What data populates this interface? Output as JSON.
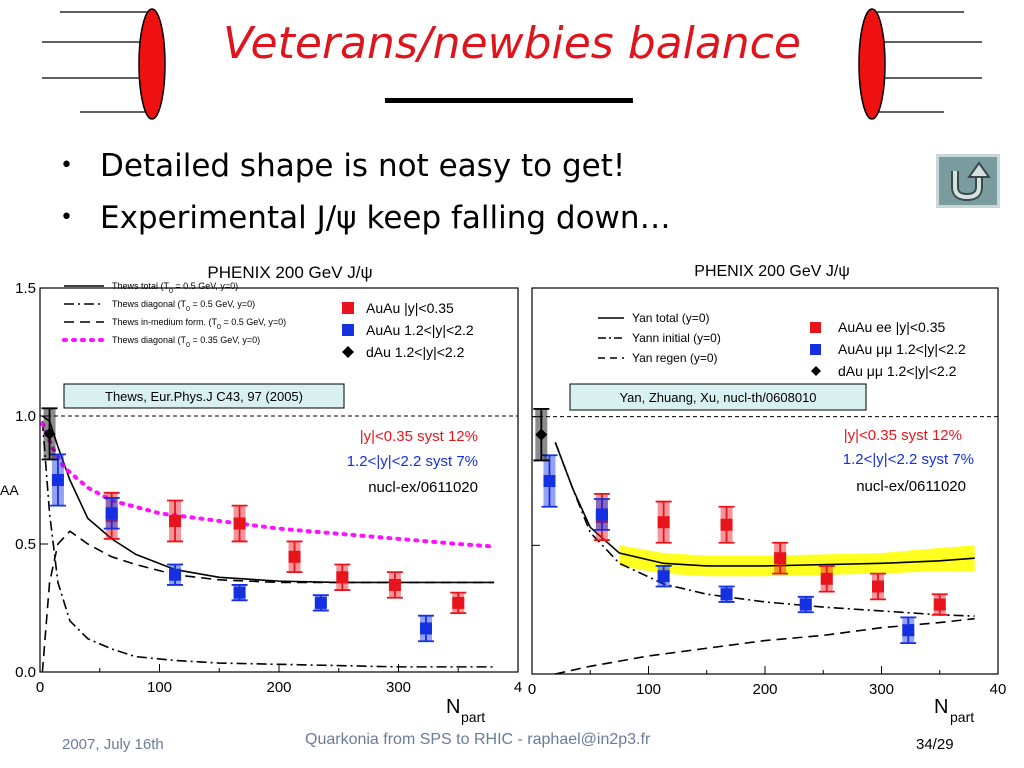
{
  "slide": {
    "title": "Veterans/newbies balance",
    "bullets": [
      "Detailed shape is not easy to get!",
      "Experimental J/ψ keep falling down…"
    ],
    "back_button_icon": "return-arrow-icon",
    "footer_date": "2007, July 16th",
    "footer_center": "Quarkonia from SPS to RHIC - raphael@in2p3.fr",
    "page_number": "34/29"
  },
  "chart_data": [
    {
      "type": "scatter",
      "title": "PHENIX 200 GeV J/ψ",
      "xlabel": "N",
      "xlabel_sub": "part",
      "ylabel": "AA",
      "xlim": [
        0,
        400
      ],
      "ylim": [
        0,
        1.5
      ],
      "x_ticks": [
        "0",
        "100",
        "200",
        "300",
        "4"
      ],
      "y_ticks": [
        "0.0",
        "0.5",
        "1.0",
        "1.5"
      ],
      "reference_line": 1.0,
      "citation": "Thews, Eur.Phys.J C43, 97 (2005)",
      "annotations": [
        "|y|<0.35 syst 12%",
        "1.2<|y|<2.2 syst 7%",
        "nucl-ex/0611020"
      ],
      "model_legend": [
        {
          "label": "Thews total (T",
          "sub": "0",
          "suffix": " = 0.5 GeV, y=0)",
          "style": "solid"
        },
        {
          "label": "Thews diagonal (T",
          "sub": "0",
          "suffix": " = 0.5 GeV, y=0)",
          "style": "dashdot"
        },
        {
          "label": "Thews in-medium form. (T",
          "sub": "0",
          "suffix": " = 0.5 GeV, y=0)",
          "style": "dashed"
        },
        {
          "label": "Thews diagonal (T",
          "sub": "0",
          "suffix": " = 0.35 GeV, y=0)",
          "style": "dotted-magenta"
        }
      ],
      "series": [
        {
          "name": "AuAu |y|<0.35",
          "color": "#e8141c",
          "marker": "square",
          "x": [
            60,
            113,
            167,
            213,
            253,
            297,
            350
          ],
          "y": [
            0.61,
            0.59,
            0.58,
            0.45,
            0.37,
            0.34,
            0.27
          ],
          "err": [
            0.09,
            0.08,
            0.07,
            0.06,
            0.05,
            0.05,
            0.04
          ]
        },
        {
          "name": "AuAu 1.2<|y|<2.2",
          "color": "#1430e0",
          "marker": "square",
          "x": [
            15,
            60,
            113,
            167,
            235,
            323
          ],
          "y": [
            0.75,
            0.62,
            0.38,
            0.31,
            0.27,
            0.17
          ],
          "err": [
            0.1,
            0.06,
            0.04,
            0.03,
            0.03,
            0.05
          ]
        },
        {
          "name": "dAu 1.2<|y|<2.2",
          "color": "#000000",
          "marker": "diamond",
          "x": [
            8
          ],
          "y": [
            0.93
          ],
          "err": [
            0.1
          ]
        }
      ],
      "model_curves": [
        {
          "name": "Thews total (T0 = 0.5 GeV, y=0)",
          "style": "solid",
          "x": [
            2,
            8,
            15,
            25,
            40,
            60,
            80,
            113,
            150,
            200,
            250,
            300,
            350,
            380
          ],
          "y": [
            1.0,
            0.98,
            0.88,
            0.75,
            0.6,
            0.52,
            0.46,
            0.4,
            0.37,
            0.355,
            0.35,
            0.35,
            0.35,
            0.35
          ]
        },
        {
          "name": "Thews diagonal (T0 = 0.5 GeV, y=0)",
          "style": "dashdot",
          "x": [
            2,
            8,
            15,
            25,
            40,
            60,
            80,
            113,
            150,
            200,
            250,
            300,
            350,
            380
          ],
          "y": [
            0.98,
            0.62,
            0.35,
            0.2,
            0.13,
            0.09,
            0.06,
            0.045,
            0.035,
            0.03,
            0.025,
            0.02,
            0.02,
            0.02
          ]
        },
        {
          "name": "Thews in-medium form. (T0 = 0.5 GeV, y=0)",
          "style": "dashed",
          "x": [
            2,
            8,
            15,
            25,
            40,
            60,
            80,
            113,
            150,
            200,
            250,
            300,
            350,
            380
          ],
          "y": [
            0.0,
            0.35,
            0.5,
            0.55,
            0.5,
            0.45,
            0.42,
            0.38,
            0.36,
            0.35,
            0.35,
            0.35,
            0.35,
            0.35
          ]
        },
        {
          "name": "Thews diagonal (T0 = 0.35 GeV, y=0)",
          "style": "dotted-magenta",
          "x": [
            2,
            10,
            20,
            40,
            60,
            100,
            150,
            200,
            250,
            300,
            350,
            380
          ],
          "y": [
            0.97,
            0.88,
            0.8,
            0.72,
            0.67,
            0.62,
            0.59,
            0.56,
            0.54,
            0.52,
            0.5,
            0.49
          ]
        }
      ]
    },
    {
      "type": "scatter",
      "title": "PHENIX 200 GeV J/ψ",
      "xlabel": "N",
      "xlabel_sub": "part",
      "xlim": [
        0,
        400
      ],
      "ylim": [
        0,
        1.5
      ],
      "x_ticks": [
        "0",
        "100",
        "200",
        "300",
        "40"
      ],
      "reference_line": 1.0,
      "citation": "Yan, Zhuang, Xu, nucl-th/0608010",
      "annotations": [
        "|y|<0.35 syst 12%",
        "1.2<|y|<2.2 syst 7%",
        "nucl-ex/0611020"
      ],
      "model_legend": [
        {
          "label": "Yan total (y=0)",
          "style": "solid"
        },
        {
          "label": "Yann initial (y=0)",
          "style": "dashdot"
        },
        {
          "label": "Yan regen (y=0)",
          "style": "dashed"
        }
      ],
      "series": [
        {
          "name": "AuAu ee |y|<0.35",
          "color": "#e8141c",
          "marker": "square",
          "x": [
            60,
            113,
            167,
            213,
            253,
            297,
            350
          ],
          "y": [
            0.61,
            0.59,
            0.58,
            0.45,
            0.37,
            0.34,
            0.27
          ],
          "err": [
            0.09,
            0.08,
            0.07,
            0.06,
            0.05,
            0.05,
            0.04
          ]
        },
        {
          "name": "AuAu μμ 1.2<|y|<2.2",
          "color": "#1430e0",
          "marker": "square",
          "x": [
            15,
            60,
            113,
            167,
            235,
            323
          ],
          "y": [
            0.75,
            0.62,
            0.38,
            0.31,
            0.27,
            0.17
          ],
          "err": [
            0.1,
            0.06,
            0.04,
            0.03,
            0.03,
            0.05
          ]
        },
        {
          "name": "dAu μμ 1.2<|y|<2.2",
          "color": "#000000",
          "marker": "diamond",
          "x": [
            8
          ],
          "y": [
            0.93
          ],
          "err": [
            0.1
          ]
        }
      ],
      "model_curves": [
        {
          "name": "Yan total (y=0)",
          "style": "solid",
          "x": [
            20,
            35,
            50,
            75,
            113,
            150,
            200,
            250,
            300,
            350,
            380
          ],
          "y": [
            0.9,
            0.72,
            0.57,
            0.47,
            0.43,
            0.42,
            0.42,
            0.425,
            0.43,
            0.44,
            0.45
          ]
        },
        {
          "name": "Yann initial (y=0)",
          "style": "dashdot",
          "x": [
            20,
            35,
            50,
            75,
            113,
            150,
            200,
            250,
            300,
            350,
            380
          ],
          "y": [
            0.9,
            0.72,
            0.55,
            0.43,
            0.35,
            0.31,
            0.28,
            0.26,
            0.245,
            0.23,
            0.225
          ]
        },
        {
          "name": "Yan regen (y=0)",
          "style": "dashed",
          "x": [
            20,
            50,
            100,
            150,
            200,
            250,
            300,
            350,
            380
          ],
          "y": [
            0.0,
            0.03,
            0.07,
            0.1,
            0.13,
            0.15,
            0.18,
            0.2,
            0.215
          ]
        }
      ],
      "band": {
        "x": [
          75,
          113,
          150,
          200,
          250,
          300,
          350,
          380
        ],
        "y_low": [
          0.42,
          0.39,
          0.38,
          0.38,
          0.385,
          0.39,
          0.4,
          0.4
        ],
        "y_high": [
          0.5,
          0.47,
          0.46,
          0.46,
          0.465,
          0.47,
          0.49,
          0.5
        ],
        "color": "#ffff20"
      }
    }
  ]
}
